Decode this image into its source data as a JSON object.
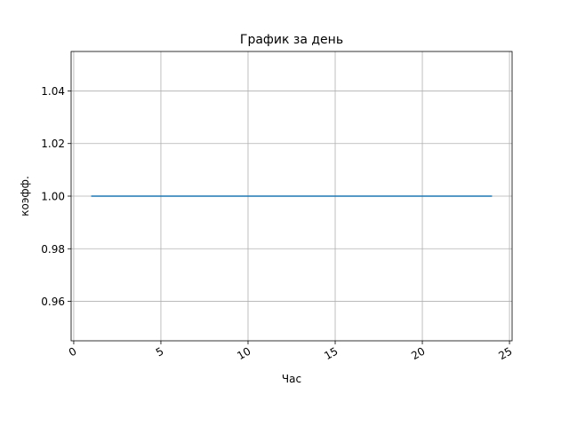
{
  "chart_data": {
    "type": "line",
    "title": "График за день",
    "xlabel": "Час",
    "ylabel": "коэфф.",
    "xlim": [
      -0.15,
      25.15
    ],
    "ylim": [
      0.945,
      1.055
    ],
    "xticks": [
      0,
      5,
      10,
      15,
      20,
      25
    ],
    "xtick_labels": [
      "0",
      "5",
      "10",
      "15",
      "20",
      "25"
    ],
    "yticks": [
      0.96,
      0.98,
      1.0,
      1.02,
      1.04
    ],
    "ytick_labels": [
      "0.96",
      "0.98",
      "1.00",
      "1.02",
      "1.04"
    ],
    "grid": true,
    "legend": "none",
    "series": [
      {
        "color": "#1f77b4",
        "x": [
          1,
          2,
          3,
          4,
          5,
          6,
          7,
          8,
          9,
          10,
          11,
          12,
          13,
          14,
          15,
          16,
          17,
          18,
          19,
          20,
          21,
          22,
          23,
          24
        ],
        "y": [
          1,
          1,
          1,
          1,
          1,
          1,
          1,
          1,
          1,
          1,
          1,
          1,
          1,
          1,
          1,
          1,
          1,
          1,
          1,
          1,
          1,
          1,
          1,
          1
        ]
      }
    ]
  }
}
